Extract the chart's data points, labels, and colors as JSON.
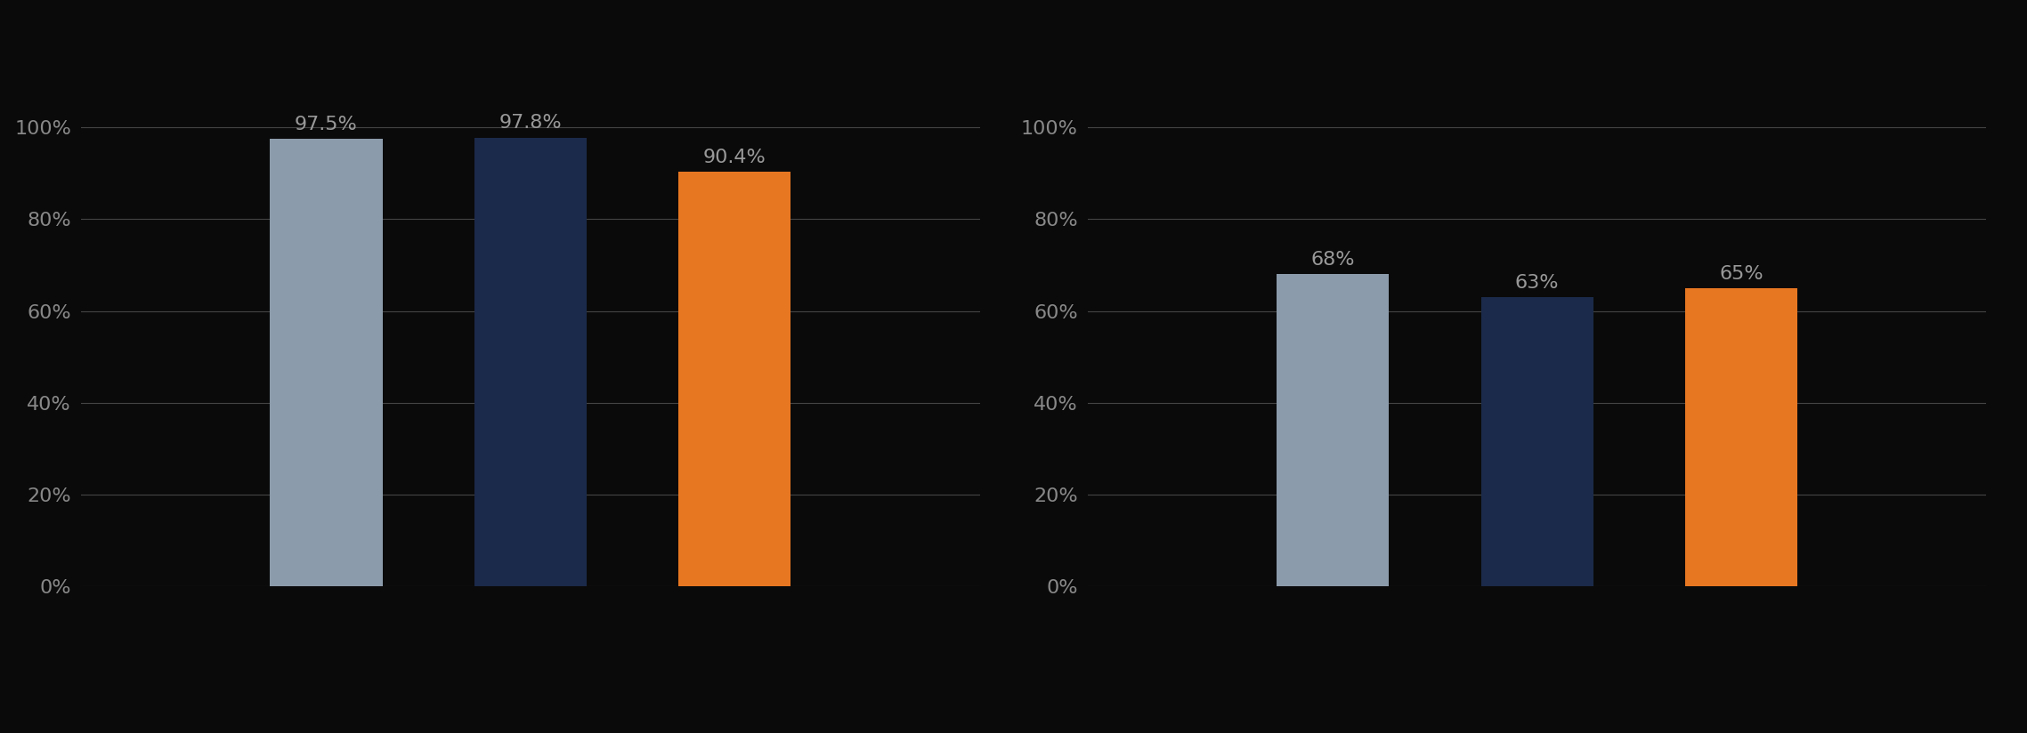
{
  "chart1": {
    "values": [
      0.975,
      0.978,
      0.904
    ],
    "labels": [
      "97.5%",
      "97.8%",
      "90.4%"
    ],
    "colors": [
      "#8C9BAB",
      "#1B2A4A",
      "#E87722"
    ],
    "ylim": [
      0,
      1.15
    ],
    "yticks": [
      0,
      0.2,
      0.4,
      0.6,
      0.8,
      1.0
    ],
    "ytick_labels": [
      "0%",
      "20%",
      "40%",
      "60%",
      "80%",
      "100%"
    ]
  },
  "chart2": {
    "values": [
      0.68,
      0.63,
      0.65
    ],
    "labels": [
      "68%",
      "63%",
      "65%"
    ],
    "colors": [
      "#8C9BAB",
      "#1B2A4A",
      "#E87722"
    ],
    "ylim": [
      0,
      1.15
    ],
    "yticks": [
      0,
      0.2,
      0.4,
      0.6,
      0.8,
      1.0
    ],
    "ytick_labels": [
      "0%",
      "20%",
      "40%",
      "60%",
      "80%",
      "100%"
    ]
  },
  "bar_width": 0.55,
  "bar_positions": [
    2,
    3,
    4
  ],
  "xlim": [
    0.8,
    5.2
  ],
  "background_color": "#0A0A0A",
  "grid_color": "#444444",
  "tick_label_color": "#888888",
  "value_label_color": "#999999",
  "legend_colors": [
    "#8C9BAB",
    "#1B2A4A",
    "#E87722"
  ],
  "legend_edge_color": "#999999",
  "legend_facecolor": "#0A0A0A",
  "tick_fontsize": 16,
  "value_fontsize": 16
}
